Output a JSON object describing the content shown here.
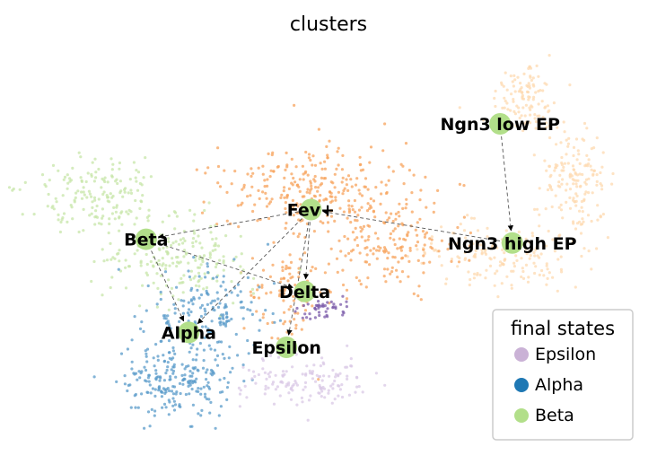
{
  "chart_data": {
    "type": "scatter",
    "title": "clusters",
    "xlabel": "",
    "ylabel": "",
    "grid": false,
    "axes_visible": false,
    "xlim": [
      0,
      100
    ],
    "ylim": [
      0,
      100
    ],
    "clusters": [
      {
        "name": "Ngn3 low EP",
        "color": "#fdbf6f",
        "x": 79,
        "y": 80,
        "label_pos": [
          79,
          80
        ]
      },
      {
        "name": "Ngn3 high EP",
        "color": "#fdbf6f",
        "x": 81,
        "y": 48,
        "label_pos": [
          81,
          48
        ]
      },
      {
        "name": "Fev+",
        "color": "#f7a35c",
        "x": 48,
        "y": 57,
        "label_pos": [
          48,
          57
        ]
      },
      {
        "name": "Beta",
        "color": "#b2df8a",
        "x": 21,
        "y": 49,
        "label_pos": [
          21,
          49
        ]
      },
      {
        "name": "Alpha",
        "color": "#1f78b4",
        "x": 28,
        "y": 24,
        "label_pos": [
          28,
          24
        ]
      },
      {
        "name": "Delta",
        "color": "#6a3d9a",
        "x": 47,
        "y": 35,
        "label_pos": [
          47,
          35
        ]
      },
      {
        "name": "Epsilon",
        "color": "#cab2d6",
        "x": 44,
        "y": 20,
        "label_pos": [
          44,
          20
        ]
      }
    ],
    "edges": [
      {
        "from": "Ngn3 low EP",
        "to": "Ngn3 high EP"
      },
      {
        "from": "Ngn3 high EP",
        "to": "Fev+"
      },
      {
        "from": "Fev+",
        "to": "Beta"
      },
      {
        "from": "Fev+",
        "to": "Alpha"
      },
      {
        "from": "Fev+",
        "to": "Delta"
      },
      {
        "from": "Fev+",
        "to": "Epsilon"
      },
      {
        "from": "Beta",
        "to": "Alpha"
      },
      {
        "from": "Beta",
        "to": "Delta"
      }
    ],
    "legend": {
      "title": "final states",
      "placement": "lower-right",
      "entries": [
        {
          "name": "Epsilon",
          "color": "#cab2d6"
        },
        {
          "name": "Alpha",
          "color": "#1f78b4"
        },
        {
          "name": "Beta",
          "color": "#b2df8a"
        }
      ]
    }
  }
}
